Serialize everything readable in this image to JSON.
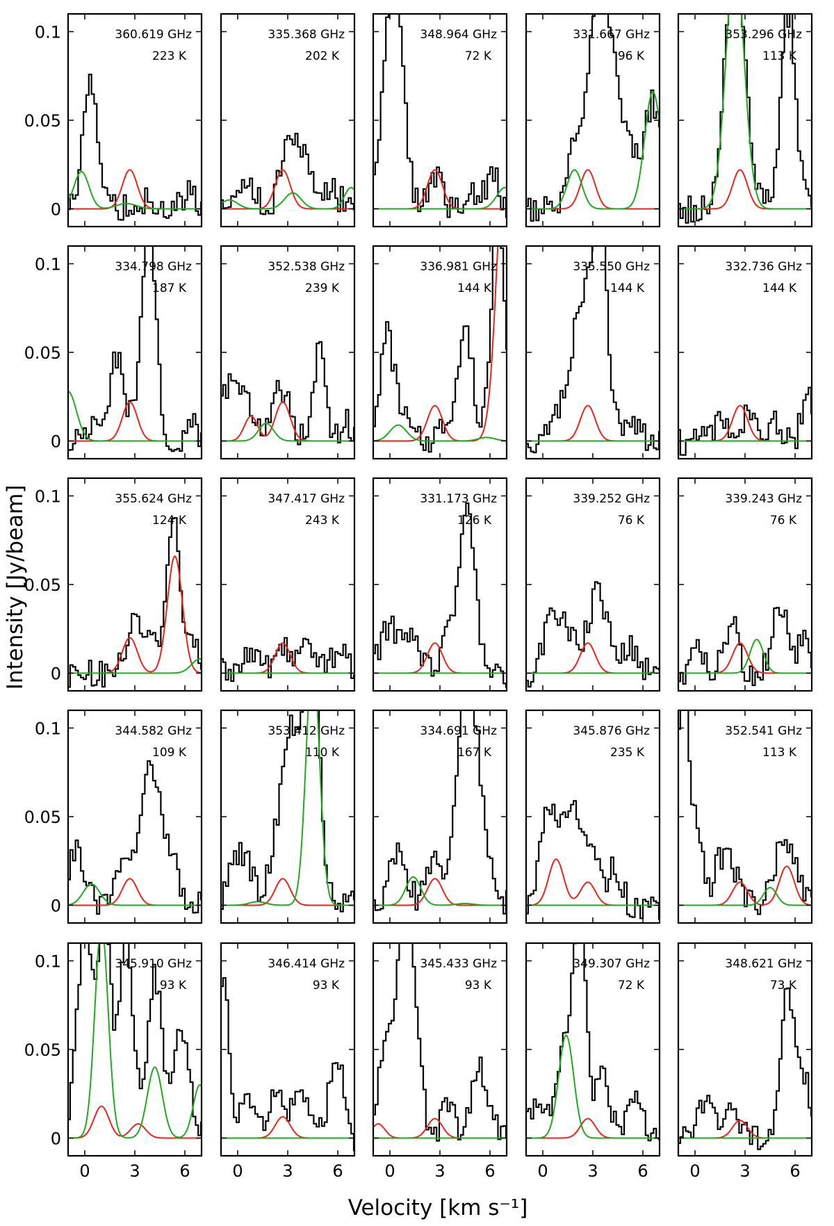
{
  "figure": {
    "xlabel": "Velocity [km s⁻¹]",
    "ylabel": "Intensity [Jy/beam]"
  },
  "chart_data": {
    "type": "line",
    "layout": "5x5 grid of spectral panels",
    "xlim": [
      -1,
      7
    ],
    "ylim": [
      -0.01,
      0.11
    ],
    "xticks": [
      0,
      3,
      6
    ],
    "xtick_labels": [
      "0",
      "3",
      "6"
    ],
    "yticks": [
      0,
      0.05,
      0.1
    ],
    "ytick_labels": [
      "0",
      "0.05",
      "0.1"
    ],
    "xlabel": "Velocity [km s⁻¹]",
    "ylabel": "Intensity [Jy/beam]",
    "series_legend": {
      "black": "observed spectrum (step)",
      "red": "model, target line",
      "green": "model, blended lines"
    },
    "panels": [
      {
        "freq": "360.619 GHz",
        "temp": "223 K",
        "red": [
          [
            2.7,
            0.022,
            0.45
          ]
        ],
        "green": [
          [
            -0.2,
            0.021,
            0.45
          ],
          [
            2.5,
            0.003,
            0.6
          ]
        ],
        "peaks": [
          [
            0.2,
            0.042,
            0.4
          ],
          [
            0.5,
            0.035,
            0.4
          ],
          [
            3.6,
            0.005,
            0.6
          ],
          [
            6.2,
            0.01,
            0.3
          ]
        ]
      },
      {
        "freq": "335.368 GHz",
        "temp": "202 K",
        "red": [
          [
            2.7,
            0.022,
            0.45
          ]
        ],
        "green": [
          [
            -0.5,
            0.005,
            0.5
          ],
          [
            3.3,
            0.009,
            0.5
          ],
          [
            6.8,
            0.012,
            0.4
          ]
        ],
        "peaks": [
          [
            2.9,
            0.025,
            0.4
          ],
          [
            3.8,
            0.035,
            0.6
          ],
          [
            0.6,
            0.015,
            0.5
          ],
          [
            5.5,
            0.01,
            0.6
          ]
        ]
      },
      {
        "freq": "348.964 GHz",
        "temp": "72 K",
        "red": [
          [
            2.7,
            0.022,
            0.45
          ]
        ],
        "green": [
          [
            6.9,
            0.012,
            0.5
          ]
        ],
        "peaks": [
          [
            0.2,
            0.14,
            0.55
          ],
          [
            2.7,
            0.02,
            0.4
          ],
          [
            5.3,
            0.01,
            0.6
          ],
          [
            6.3,
            0.015,
            0.3
          ]
        ]
      },
      {
        "freq": "331.667 GHz",
        "temp": "96 K",
        "red": [
          [
            2.7,
            0.022,
            0.45
          ]
        ],
        "green": [
          [
            1.9,
            0.022,
            0.45
          ],
          [
            6.6,
            0.066,
            0.5
          ]
        ],
        "peaks": [
          [
            3.5,
            0.13,
            0.8
          ],
          [
            1.8,
            0.02,
            0.4
          ],
          [
            5.2,
            0.025,
            0.5
          ],
          [
            6.6,
            0.06,
            0.5
          ]
        ]
      },
      {
        "freq": "353.296 GHz",
        "temp": "113 K",
        "red": [
          [
            2.7,
            0.022,
            0.45
          ]
        ],
        "green": [
          [
            2.4,
            0.14,
            0.55
          ]
        ],
        "peaks": [
          [
            2.4,
            0.14,
            0.6
          ],
          [
            5.6,
            0.11,
            0.45
          ]
        ]
      },
      {
        "freq": "334.798 GHz",
        "temp": "187 K",
        "red": [
          [
            2.7,
            0.022,
            0.45
          ]
        ],
        "green": [
          [
            -1.0,
            0.028,
            0.5
          ]
        ],
        "peaks": [
          [
            3.8,
            0.12,
            0.45
          ],
          [
            2.0,
            0.05,
            0.4
          ],
          [
            0.5,
            0.01,
            0.5
          ],
          [
            6.4,
            0.01,
            0.3
          ]
        ]
      },
      {
        "freq": "352.538 GHz",
        "temp": "239 K",
        "red": [
          [
            2.7,
            0.022,
            0.45
          ],
          [
            0.8,
            0.014,
            0.4
          ]
        ],
        "green": [
          [
            1.7,
            0.01,
            0.45
          ]
        ],
        "peaks": [
          [
            -0.5,
            0.03,
            0.5
          ],
          [
            0.5,
            0.025,
            0.4
          ],
          [
            2.6,
            0.03,
            0.5
          ],
          [
            4.9,
            0.055,
            0.3
          ],
          [
            6.5,
            0.01,
            0.4
          ]
        ]
      },
      {
        "freq": "336.981 GHz",
        "temp": "144 K",
        "red": [
          [
            2.7,
            0.02,
            0.45
          ],
          [
            6.9,
            0.16,
            0.5
          ]
        ],
        "green": [
          [
            0.5,
            0.009,
            0.5
          ],
          [
            5.8,
            0.002,
            0.5
          ]
        ],
        "peaks": [
          [
            -0.2,
            0.06,
            0.4
          ],
          [
            0.7,
            0.015,
            0.4
          ],
          [
            3.5,
            0.015,
            0.5
          ],
          [
            4.6,
            0.06,
            0.4
          ],
          [
            6.5,
            0.13,
            0.4
          ]
        ]
      },
      {
        "freq": "335.550 GHz",
        "temp": "144 K",
        "red": [
          [
            2.7,
            0.02,
            0.45
          ]
        ],
        "green": [],
        "peaks": [
          [
            2.3,
            0.07,
            0.6
          ],
          [
            3.4,
            0.12,
            0.45
          ],
          [
            1.0,
            0.012,
            0.6
          ],
          [
            5.0,
            0.01,
            0.6
          ]
        ]
      },
      {
        "freq": "332.736 GHz",
        "temp": "144 K",
        "red": [
          [
            2.7,
            0.02,
            0.45
          ]
        ],
        "green": [],
        "peaks": [
          [
            1.5,
            0.01,
            0.5
          ],
          [
            3.3,
            0.015,
            0.4
          ],
          [
            6.7,
            0.028,
            0.3
          ],
          [
            4.8,
            0.01,
            0.5
          ]
        ]
      },
      {
        "freq": "355.624 GHz",
        "temp": "124 K",
        "red": [
          [
            2.7,
            0.02,
            0.45
          ],
          [
            5.4,
            0.066,
            0.45
          ]
        ],
        "green": [
          [
            6.9,
            0.008,
            0.5
          ]
        ],
        "peaks": [
          [
            2.9,
            0.033,
            0.4
          ],
          [
            5.3,
            0.085,
            0.45
          ],
          [
            3.8,
            0.02,
            0.4
          ],
          [
            6.5,
            0.02,
            0.3
          ]
        ]
      },
      {
        "freq": "347.417 GHz",
        "temp": "243 K",
        "red": [
          [
            2.7,
            0.017,
            0.45
          ]
        ],
        "green": [],
        "peaks": [
          [
            0.7,
            0.013,
            0.5
          ],
          [
            2.6,
            0.018,
            0.4
          ],
          [
            4.2,
            0.018,
            0.6
          ],
          [
            6.2,
            0.012,
            0.5
          ]
        ]
      },
      {
        "freq": "331.173 GHz",
        "temp": "126 K",
        "red": [
          [
            2.7,
            0.017,
            0.45
          ]
        ],
        "green": [],
        "peaks": [
          [
            4.6,
            0.09,
            0.5
          ],
          [
            1.0,
            0.025,
            0.6
          ],
          [
            -0.2,
            0.02,
            0.5
          ],
          [
            3.5,
            0.015,
            0.4
          ]
        ]
      },
      {
        "freq": "339.252 GHz",
        "temp": "76 K",
        "red": [
          [
            2.7,
            0.017,
            0.45
          ]
        ],
        "green": [],
        "peaks": [
          [
            3.3,
            0.045,
            0.6
          ],
          [
            0.5,
            0.035,
            0.4
          ],
          [
            1.5,
            0.025,
            0.5
          ],
          [
            5.2,
            0.015,
            0.5
          ]
        ]
      },
      {
        "freq": "339.243 GHz",
        "temp": "76 K",
        "red": [
          [
            2.7,
            0.017,
            0.45
          ]
        ],
        "green": [
          [
            3.7,
            0.019,
            0.4
          ]
        ],
        "peaks": [
          [
            2.2,
            0.03,
            0.4
          ],
          [
            5.1,
            0.04,
            0.45
          ],
          [
            0.1,
            0.02,
            0.3
          ],
          [
            6.6,
            0.025,
            0.3
          ]
        ]
      },
      {
        "freq": "344.582 GHz",
        "temp": "109 K",
        "red": [
          [
            2.7,
            0.015,
            0.45
          ]
        ],
        "green": [
          [
            0.4,
            0.012,
            0.5
          ]
        ],
        "peaks": [
          [
            3.7,
            0.07,
            0.5
          ],
          [
            -0.5,
            0.03,
            0.5
          ],
          [
            2.2,
            0.025,
            0.4
          ],
          [
            5.1,
            0.03,
            0.5
          ],
          [
            4.3,
            0.03,
            0.3
          ]
        ]
      },
      {
        "freq": "353.412 GHz",
        "temp": "110 K",
        "red": [
          [
            2.7,
            0.015,
            0.45
          ]
        ],
        "green": [
          [
            4.5,
            0.14,
            0.4
          ],
          [
            1.2,
            0.002,
            0.5
          ]
        ],
        "peaks": [
          [
            3.3,
            0.1,
            0.8
          ],
          [
            4.5,
            0.14,
            0.4
          ],
          [
            0.2,
            0.03,
            0.6
          ]
        ]
      },
      {
        "freq": "334.691 GHz",
        "temp": "167 K",
        "red": [
          [
            2.7,
            0.015,
            0.45
          ]
        ],
        "green": [
          [
            1.4,
            0.016,
            0.45
          ],
          [
            4.5,
            0.001,
            0.5
          ]
        ],
        "peaks": [
          [
            4.7,
            0.13,
            0.7
          ],
          [
            0.5,
            0.03,
            0.5
          ],
          [
            2.5,
            0.025,
            0.4
          ]
        ]
      },
      {
        "freq": "345.876 GHz",
        "temp": "235 K",
        "red": [
          [
            2.7,
            0.013,
            0.45
          ],
          [
            0.8,
            0.026,
            0.45
          ]
        ],
        "green": [],
        "peaks": [
          [
            0.3,
            0.05,
            0.5
          ],
          [
            1.7,
            0.055,
            0.6
          ],
          [
            3.0,
            0.025,
            0.4
          ],
          [
            4.3,
            0.02,
            0.4
          ]
        ]
      },
      {
        "freq": "352.541 GHz",
        "temp": "113 K",
        "red": [
          [
            2.7,
            0.013,
            0.45
          ],
          [
            5.5,
            0.022,
            0.45
          ]
        ],
        "green": [
          [
            4.5,
            0.01,
            0.4
          ]
        ],
        "peaks": [
          [
            -0.7,
            0.14,
            0.35
          ],
          [
            0.2,
            0.04,
            0.3
          ],
          [
            1.8,
            0.03,
            0.6
          ],
          [
            5.2,
            0.03,
            0.5
          ],
          [
            6.0,
            0.02,
            0.4
          ]
        ]
      },
      {
        "freq": "345.910 GHz",
        "temp": "93 K",
        "red": [
          [
            1.0,
            0.018,
            0.45
          ],
          [
            3.2,
            0.008,
            0.45
          ]
        ],
        "green": [
          [
            1.0,
            0.12,
            0.4
          ],
          [
            4.2,
            0.04,
            0.45
          ],
          [
            6.9,
            0.03,
            0.4
          ]
        ],
        "peaks": [
          [
            0.0,
            0.12,
            0.45
          ],
          [
            1.2,
            0.12,
            0.4
          ],
          [
            2.5,
            0.11,
            0.4
          ],
          [
            4.2,
            0.09,
            0.45
          ],
          [
            5.8,
            0.06,
            0.5
          ]
        ]
      },
      {
        "freq": "346.414 GHz",
        "temp": "93 K",
        "red": [
          [
            2.7,
            0.012,
            0.45
          ]
        ],
        "green": [],
        "peaks": [
          [
            -0.8,
            0.09,
            0.3
          ],
          [
            0.6,
            0.025,
            0.4
          ],
          [
            2.2,
            0.025,
            0.4
          ],
          [
            3.7,
            0.03,
            0.5
          ],
          [
            5.9,
            0.05,
            0.4
          ]
        ]
      },
      {
        "freq": "345.433 GHz",
        "temp": "93 K",
        "red": [
          [
            2.7,
            0.011,
            0.45
          ],
          [
            -0.7,
            0.008,
            0.4
          ]
        ],
        "green": [],
        "peaks": [
          [
            1.0,
            0.14,
            0.55
          ],
          [
            -0.3,
            0.05,
            0.4
          ],
          [
            3.5,
            0.02,
            0.4
          ],
          [
            5.4,
            0.04,
            0.5
          ]
        ]
      },
      {
        "freq": "349.307 GHz",
        "temp": "72 K",
        "red": [
          [
            2.7,
            0.011,
            0.45
          ]
        ],
        "green": [
          [
            1.4,
            0.058,
            0.45
          ]
        ],
        "peaks": [
          [
            2.2,
            0.13,
            0.4
          ],
          [
            1.2,
            0.05,
            0.45
          ],
          [
            3.6,
            0.035,
            0.4
          ],
          [
            -0.3,
            0.02,
            0.5
          ],
          [
            5.5,
            0.02,
            0.5
          ]
        ]
      },
      {
        "freq": "348.621 GHz",
        "temp": "73 K",
        "red": [
          [
            2.7,
            0.01,
            0.45
          ]
        ],
        "green": [],
        "peaks": [
          [
            5.6,
            0.085,
            0.4
          ],
          [
            0.7,
            0.02,
            0.5
          ],
          [
            2.2,
            0.015,
            0.4
          ],
          [
            6.6,
            0.03,
            0.3
          ]
        ]
      }
    ]
  }
}
